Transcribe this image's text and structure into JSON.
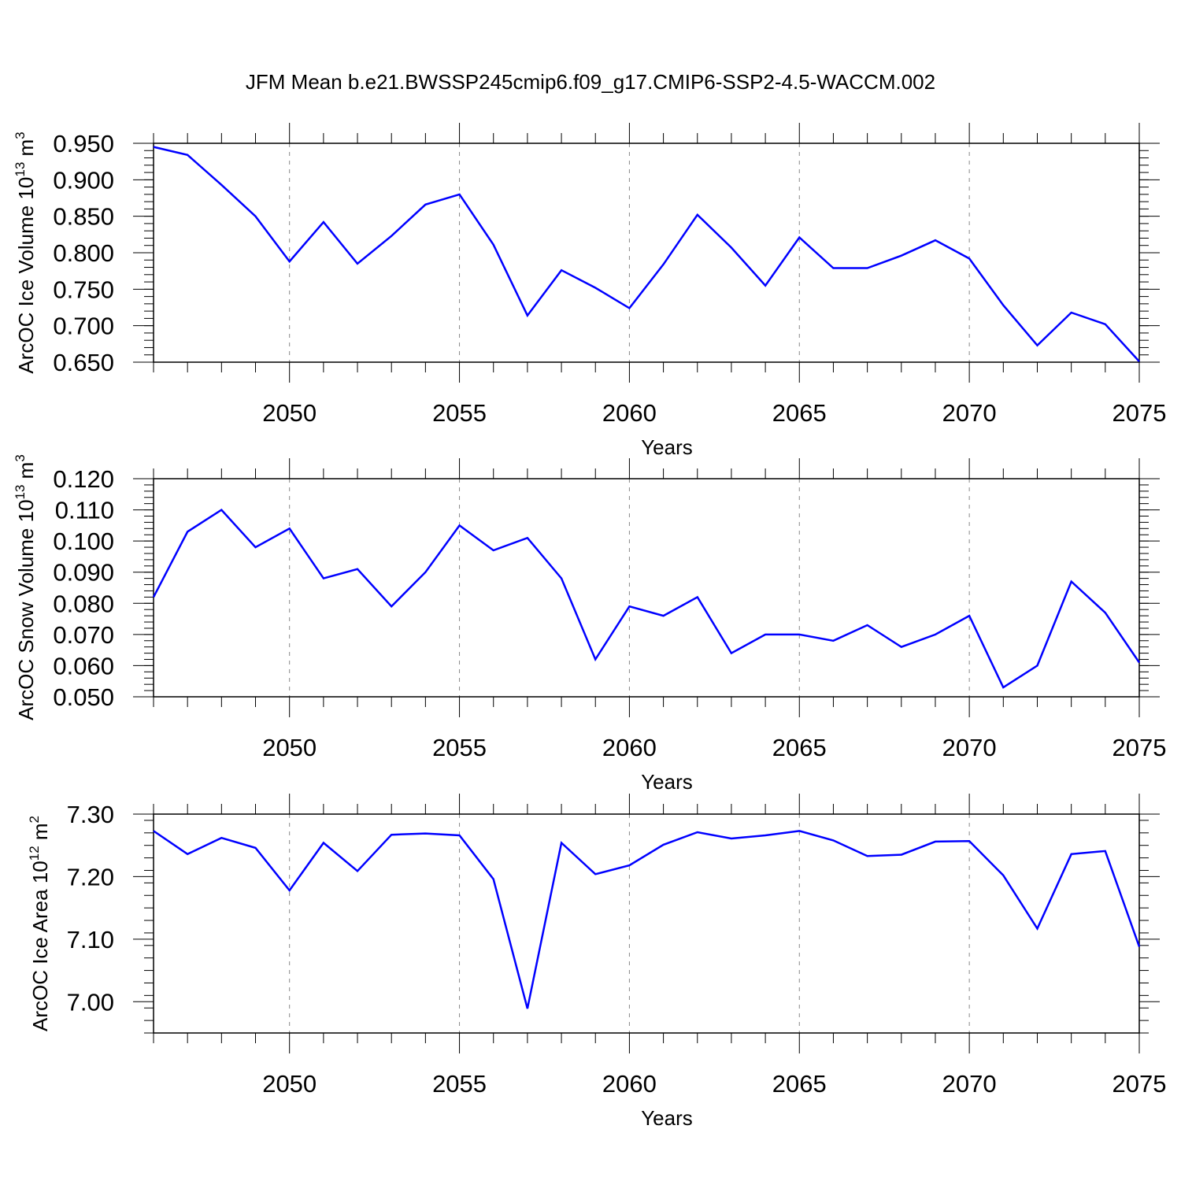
{
  "title": "JFM Mean b.e21.BWSSP245cmip6.f09_g17.CMIP6-SSP2-4.5-WACCM.002",
  "line_color": "#0000ff",
  "chart_data": [
    {
      "type": "line",
      "title": "JFM Mean b.e21.BWSSP245cmip6.f09_g17.CMIP6-SSP2-4.5-WACCM.002",
      "xlabel": "Years",
      "ylabel": {
        "main": "ArcOC Ice Volume 10",
        "sup1": "13",
        "mid": " m",
        "sup2": "3"
      },
      "x": [
        2046,
        2047,
        2048,
        2049,
        2050,
        2051,
        2052,
        2053,
        2054,
        2055,
        2056,
        2057,
        2058,
        2059,
        2060,
        2061,
        2062,
        2063,
        2064,
        2065,
        2066,
        2067,
        2068,
        2069,
        2070,
        2071,
        2072,
        2073,
        2074,
        2075
      ],
      "values": [
        0.945,
        0.934,
        0.893,
        0.85,
        0.788,
        0.842,
        0.785,
        0.823,
        0.866,
        0.88,
        0.811,
        0.714,
        0.776,
        0.752,
        0.724,
        0.784,
        0.852,
        0.807,
        0.755,
        0.821,
        0.779,
        0.779,
        0.796,
        0.817,
        0.792,
        0.728,
        0.673,
        0.718,
        0.702,
        0.651
      ],
      "xlim": [
        2046,
        2075
      ],
      "ylim": [
        0.65,
        0.95
      ],
      "xticks": [
        2050,
        2055,
        2060,
        2065,
        2070,
        2075
      ],
      "xtick_labels": [
        "2050",
        "2055",
        "2060",
        "2065",
        "2070",
        "2075"
      ],
      "yticks": [
        0.65,
        0.7,
        0.75,
        0.8,
        0.85,
        0.9,
        0.95
      ],
      "ytick_labels": [
        "0.650",
        "0.700",
        "0.750",
        "0.800",
        "0.850",
        "0.900",
        "0.950"
      ],
      "y_minor_step": 0.01,
      "grid": "vertical dashed at major x ticks"
    },
    {
      "type": "line",
      "xlabel": "Years",
      "ylabel": {
        "main": "ArcOC Snow Volume 10",
        "sup1": "13",
        "mid": " m",
        "sup2": "3"
      },
      "x": [
        2046,
        2047,
        2048,
        2049,
        2050,
        2051,
        2052,
        2053,
        2054,
        2055,
        2056,
        2057,
        2058,
        2059,
        2060,
        2061,
        2062,
        2063,
        2064,
        2065,
        2066,
        2067,
        2068,
        2069,
        2070,
        2071,
        2072,
        2073,
        2074,
        2075
      ],
      "values": [
        0.082,
        0.103,
        0.11,
        0.098,
        0.104,
        0.088,
        0.091,
        0.079,
        0.09,
        0.105,
        0.097,
        0.101,
        0.088,
        0.062,
        0.079,
        0.076,
        0.082,
        0.064,
        0.07,
        0.07,
        0.068,
        0.073,
        0.066,
        0.07,
        0.076,
        0.053,
        0.06,
        0.087,
        0.077,
        0.061
      ],
      "xlim": [
        2046,
        2075
      ],
      "ylim": [
        0.05,
        0.12
      ],
      "xticks": [
        2050,
        2055,
        2060,
        2065,
        2070,
        2075
      ],
      "xtick_labels": [
        "2050",
        "2055",
        "2060",
        "2065",
        "2070",
        "2075"
      ],
      "yticks": [
        0.05,
        0.06,
        0.07,
        0.08,
        0.09,
        0.1,
        0.11,
        0.12
      ],
      "ytick_labels": [
        "0.050",
        "0.060",
        "0.070",
        "0.080",
        "0.090",
        "0.100",
        "0.110",
        "0.120"
      ],
      "y_minor_step": 0.002,
      "grid": "vertical dashed at major x ticks"
    },
    {
      "type": "line",
      "xlabel": "Years",
      "ylabel": {
        "main": "ArcOC Ice Area 10",
        "sup1": "12",
        "mid": " m",
        "sup2": "2"
      },
      "x": [
        2046,
        2047,
        2048,
        2049,
        2050,
        2051,
        2052,
        2053,
        2054,
        2055,
        2056,
        2057,
        2058,
        2059,
        2060,
        2061,
        2062,
        2063,
        2064,
        2065,
        2066,
        2067,
        2068,
        2069,
        2070,
        2071,
        2072,
        2073,
        2074,
        2075
      ],
      "values": [
        7.273,
        7.236,
        7.262,
        7.246,
        7.178,
        7.254,
        7.209,
        7.267,
        7.269,
        7.266,
        7.196,
        6.989,
        7.254,
        7.204,
        7.218,
        7.251,
        7.271,
        7.261,
        7.266,
        7.273,
        7.258,
        7.233,
        7.235,
        7.256,
        7.257,
        7.202,
        7.117,
        7.236,
        7.241,
        7.088
      ],
      "xlim": [
        2046,
        2075
      ],
      "ylim": [
        6.95,
        7.3
      ],
      "xticks": [
        2050,
        2055,
        2060,
        2065,
        2070,
        2075
      ],
      "xtick_labels": [
        "2050",
        "2055",
        "2060",
        "2065",
        "2070",
        "2075"
      ],
      "yticks": [
        7.0,
        7.1,
        7.2,
        7.3
      ],
      "ytick_labels": [
        "7.00",
        "7.10",
        "7.20",
        "7.30"
      ],
      "y_minor_step": 0.02,
      "grid": "vertical dashed at major x ticks"
    }
  ]
}
